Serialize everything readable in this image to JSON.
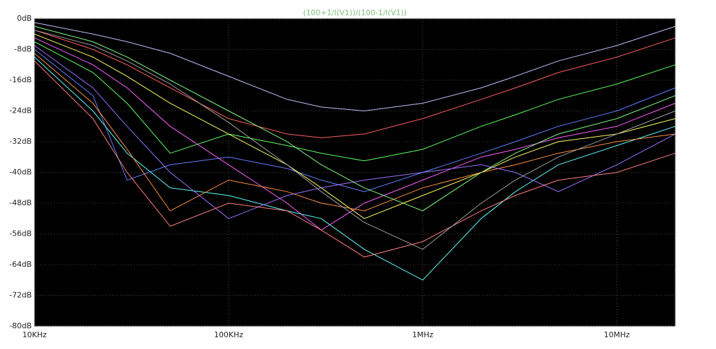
{
  "chart_data": {
    "type": "line",
    "title": "(100+1/I(V1))/(100-1/I(V1))",
    "title_color": "#7fbf7f",
    "x": [
      10000,
      20000,
      30000,
      50000,
      100000,
      200000,
      300000,
      500000,
      1000000,
      2000000,
      3000000,
      5000000,
      10000000,
      20000000
    ],
    "xscale": "log",
    "xlim": [
      10000,
      20000000
    ],
    "xticks": [
      {
        "value": 10000,
        "label": "10KHz"
      },
      {
        "value": 100000,
        "label": "100KHz"
      },
      {
        "value": 1000000,
        "label": "1MHz"
      },
      {
        "value": 10000000,
        "label": "10MHz"
      }
    ],
    "ylim": [
      -80,
      0
    ],
    "yticks": [
      {
        "value": 0,
        "label": "0dB"
      },
      {
        "value": -8,
        "label": "-8dB"
      },
      {
        "value": -16,
        "label": "-16dB"
      },
      {
        "value": -24,
        "label": "-24dB"
      },
      {
        "value": -32,
        "label": "-32dB"
      },
      {
        "value": -40,
        "label": "-40dB"
      },
      {
        "value": -48,
        "label": "-48dB"
      },
      {
        "value": -56,
        "label": "-56dB"
      },
      {
        "value": -64,
        "label": "-64dB"
      },
      {
        "value": -72,
        "label": "-72dB"
      },
      {
        "value": -80,
        "label": "-80dB"
      }
    ],
    "grid": true,
    "series": [
      {
        "color": "#c0c0ff",
        "values": [
          -1,
          -4,
          -6,
          -9,
          -15,
          -21,
          -23,
          -24,
          -22,
          -18,
          -15,
          -11,
          -7,
          -2
        ]
      },
      {
        "color": "#ff6060",
        "values": [
          -3,
          -8,
          -12,
          -18,
          -26,
          -30,
          -31,
          -30,
          -26,
          -21,
          -18,
          -14,
          -10,
          -5
        ]
      },
      {
        "color": "#60ff60",
        "values": [
          -6,
          -14,
          -22,
          -35,
          -30,
          -33,
          -35,
          -37,
          -34,
          -28,
          -25,
          -21,
          -17,
          -12
        ]
      },
      {
        "color": "#6080ff",
        "values": [
          -8,
          -20,
          -42,
          -38,
          -36,
          -39,
          -42,
          -45,
          -40,
          -35,
          -32,
          -28,
          -24,
          -18
        ]
      },
      {
        "color": "#ff60ff",
        "values": [
          -5,
          -12,
          -18,
          -28,
          -38,
          -48,
          -55,
          -48,
          -42,
          -36,
          -34,
          -31,
          -28,
          -22
        ]
      },
      {
        "color": "#60ffff",
        "values": [
          -10,
          -24,
          -35,
          -44,
          -46,
          -50,
          -52,
          -60,
          -68,
          -52,
          -45,
          -38,
          -33,
          -28
        ]
      },
      {
        "color": "#ffff60",
        "values": [
          -4,
          -10,
          -15,
          -22,
          -30,
          -38,
          -44,
          -52,
          -46,
          -40,
          -36,
          -32,
          -30,
          -26
        ]
      },
      {
        "color": "#ff9040",
        "values": [
          -9,
          -22,
          -34,
          -50,
          -42,
          -45,
          -48,
          -50,
          -44,
          -40,
          -38,
          -35,
          -32,
          -30
        ]
      },
      {
        "color": "#a070ff",
        "values": [
          -7,
          -18,
          -28,
          -40,
          -52,
          -46,
          -44,
          -42,
          -40,
          -38,
          -40,
          -45,
          -38,
          -30
        ]
      },
      {
        "color": "#80ff80",
        "values": [
          -2,
          -6,
          -10,
          -16,
          -24,
          -32,
          -38,
          -44,
          -50,
          -40,
          -35,
          -30,
          -26,
          -20
        ]
      },
      {
        "color": "#ff8080",
        "values": [
          -11,
          -26,
          -40,
          -54,
          -48,
          -50,
          -55,
          -62,
          -58,
          -50,
          -46,
          -42,
          -40,
          -35
        ]
      },
      {
        "color": "#a0a0a0",
        "values": [
          -3,
          -7,
          -11,
          -17,
          -27,
          -38,
          -45,
          -53,
          -60,
          -48,
          -42,
          -36,
          -30,
          -24
        ]
      }
    ]
  }
}
